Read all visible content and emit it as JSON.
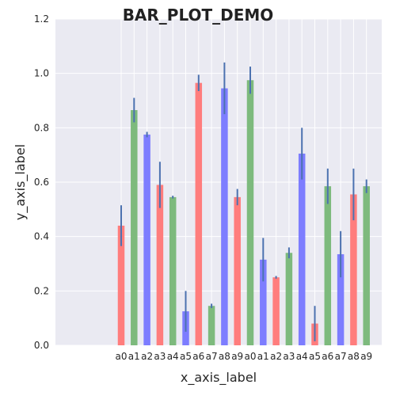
{
  "chart_data": {
    "type": "bar",
    "title": "BAR_PLOT_DEMO",
    "xlabel": "x_axis_label",
    "ylabel": "y_axis_label",
    "ylim": [
      0,
      1.2
    ],
    "yticks": [
      "0.0",
      "0.2",
      "0.4",
      "0.6",
      "0.8",
      "1.0",
      "1.2"
    ],
    "grid": true,
    "categories": [
      "a0",
      "a1",
      "a2",
      "a3",
      "a4",
      "a5",
      "a6",
      "a7",
      "a8",
      "a9",
      "a0",
      "a1",
      "a2",
      "a3",
      "a4",
      "a5",
      "a6",
      "a7",
      "a8",
      "a9"
    ],
    "values": [
      0.44,
      0.865,
      0.775,
      0.59,
      0.545,
      0.125,
      0.965,
      0.145,
      0.945,
      0.545,
      0.975,
      0.315,
      0.25,
      0.34,
      0.705,
      0.08,
      0.585,
      0.335,
      0.555,
      0.585
    ],
    "errors": [
      0.075,
      0.045,
      0.01,
      0.085,
      0.005,
      0.075,
      0.03,
      0.008,
      0.095,
      0.03,
      0.05,
      0.08,
      0.005,
      0.02,
      0.095,
      0.065,
      0.065,
      0.085,
      0.095,
      0.025
    ],
    "bar_colors": [
      "red",
      "green",
      "blue",
      "red",
      "green",
      "blue",
      "red",
      "green",
      "blue",
      "red",
      "green",
      "blue",
      "red",
      "green",
      "blue",
      "red",
      "green",
      "blue",
      "red",
      "green"
    ],
    "colors": {
      "red": "#ff7d7d",
      "green": "#7dba7d",
      "blue": "#7d7dff",
      "error": "#4c72b0",
      "background": "#eaeaf2",
      "grid": "#ffffff"
    }
  }
}
